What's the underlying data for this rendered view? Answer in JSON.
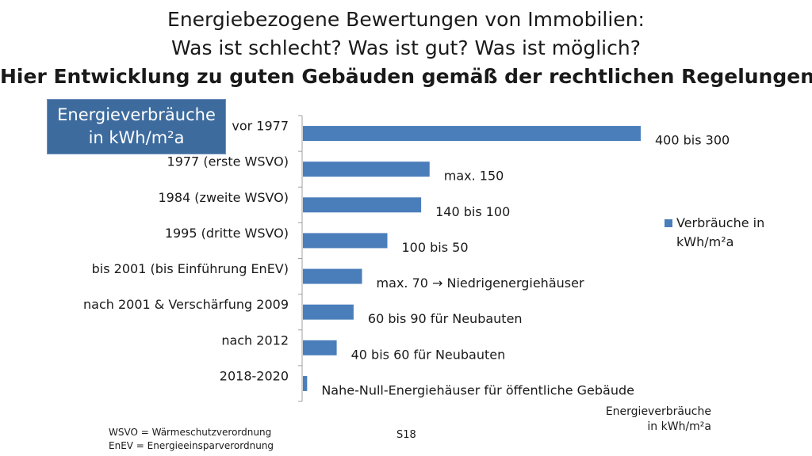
{
  "header": {
    "line1": "Energiebezogene Bewertungen von Immobilien:",
    "line2": "Was ist schlecht? Was ist gut? Was ist möglich?",
    "line3": "Hier Entwicklung zu guten Gebäuden gemäß der rechtlichen Regelungen"
  },
  "badge": {
    "line1": "Energieverbräuche",
    "line2": "in  kWh/m²a"
  },
  "chart_data": {
    "type": "bar",
    "orientation": "horizontal",
    "categories": [
      "vor 1977",
      "1977 (erste WSVO)",
      "1984 (zweite WSVO)",
      "1995 (dritte WSVO)",
      "bis 2001 (bis Einführung EnEV)",
      "nach 2001 & Verschärfung 2009",
      "nach 2012",
      "2018-2020"
    ],
    "series": [
      {
        "name": "Verbräuche in kWh/m²a",
        "values": [
          400,
          150,
          140,
          100,
          70,
          60,
          40,
          5
        ]
      }
    ],
    "data_labels": [
      "400 bis 300",
      "max. 150",
      "140 bis 100",
      "100 bis 50",
      "max. 70 → Niedrigenergiehäuser",
      "60 bis 90 für Neubauten",
      "40 bis 60 für Neubauten",
      "Nahe-Null-Energiehäuser für öffentliche Gebäude"
    ],
    "legend": {
      "label_line1": "Verbräuche in",
      "label_line2": "kWh/m²a",
      "position": "right"
    },
    "xlabel_line1": "Energieverbräuche",
    "xlabel_line2": "in  kWh/m²a",
    "xlim": [
      0,
      400
    ],
    "grid": false,
    "colors": {
      "bar": "#4a7ebb",
      "axis": "#a0a0a0"
    }
  },
  "footnotes": {
    "line1": "WSVO = Wärmeschutzverordnung",
    "line2": "EnEV = Energieeinsparverordnung"
  },
  "page_number": "S18"
}
